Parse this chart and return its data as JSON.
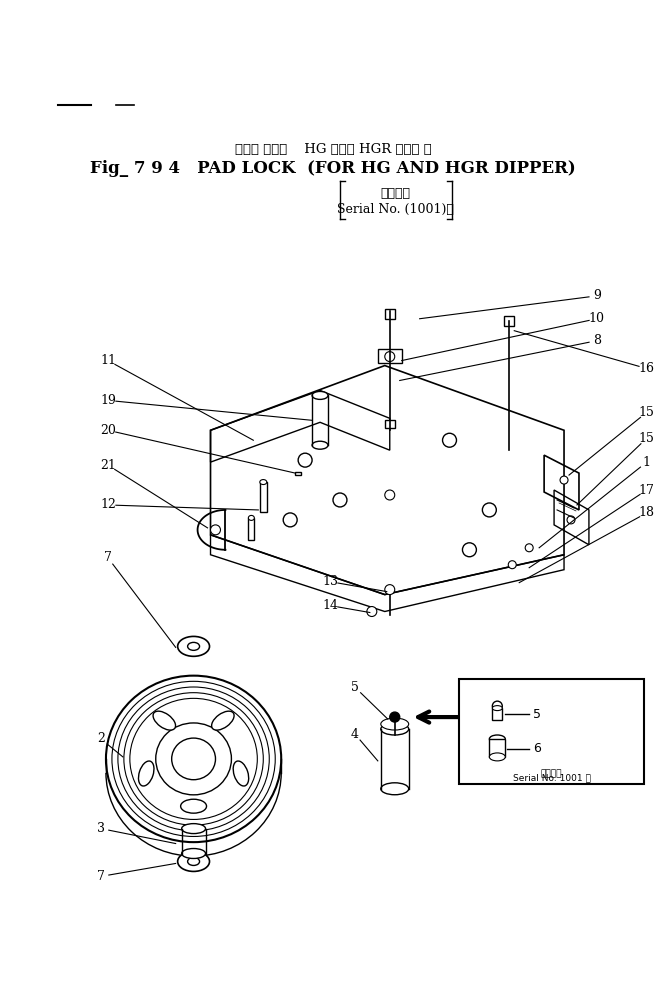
{
  "title_line1": "バッド ロック    HG および HGR ディパ 用",
  "title_line2": "Fig_ 7 9 4   PAD LOCK  (FOR HG AND HGR DIPPER)",
  "title_line3": "通用号機",
  "title_line4": "Serial No. (1001)～",
  "bg_color": "#ffffff",
  "inset_serial": "通用号機\nSerial No. 1001 ～"
}
